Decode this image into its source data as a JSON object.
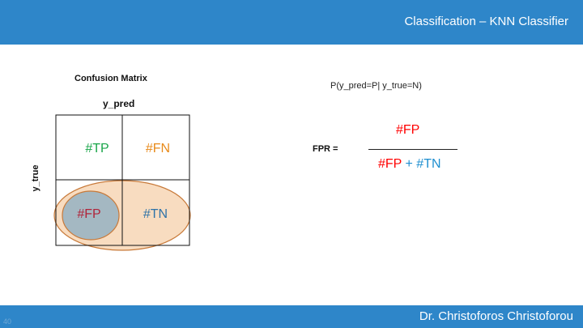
{
  "header": {
    "title": "Classification – KNN Classifier"
  },
  "footer": {
    "author": "Dr. Christoforos Christoforou",
    "slide_number": "40"
  },
  "confusion_matrix": {
    "title": "Confusion Matrix",
    "pred_axis_label": "y_pred",
    "true_axis_label": "y_true",
    "cells": {
      "tp": "#TP",
      "fn": "#FN",
      "fp": "#FP",
      "tn": "#TN"
    }
  },
  "formula": {
    "condition": "P(y_pred=P| y_true=N)",
    "label": "FPR  =",
    "numerator": "#FP",
    "denominator_fp": "#FP",
    "denominator_plus": " + ",
    "denominator_tn": "#TN"
  },
  "colors": {
    "bar": "#2e86c9",
    "tp": "#1aa64a",
    "fn": "#e88a1a",
    "fp_cell": "#b0243a",
    "tn": "#2f73a8",
    "fp_formula": "#ff0000",
    "tn_formula": "#1f8fd0",
    "ellipse_fill": "#f8dcc0",
    "ellipse_stroke": "#c87a3a",
    "fp_fill": "#a4b8c2"
  }
}
